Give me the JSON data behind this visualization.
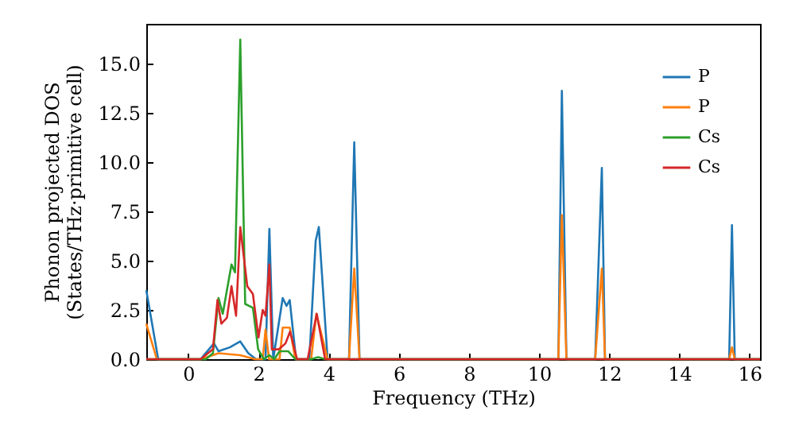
{
  "chart_data": {
    "type": "line",
    "xlabel": "Frequency (THz)",
    "ylabel": "Phonon projected DOS\n(States/THz·primitive cell)",
    "xlim": [
      -1.2,
      16.3
    ],
    "ylim": [
      0,
      17
    ],
    "xticks": [
      0,
      2,
      4,
      6,
      8,
      10,
      12,
      14,
      16
    ],
    "yticks": [
      {
        "value": 0,
        "label": "0.0"
      },
      {
        "value": 2.5,
        "label": "2.5"
      },
      {
        "value": 5,
        "label": "5.0"
      },
      {
        "value": 7.5,
        "label": "7.5"
      },
      {
        "value": 10,
        "label": "10.0"
      },
      {
        "value": 12.5,
        "label": "12.5"
      },
      {
        "value": 15,
        "label": "15.0"
      }
    ],
    "legend": "top right",
    "line_style": "solid",
    "marker": "none",
    "series": [
      {
        "name": "P",
        "color": "#1f77b4",
        "x": [
          -1.2,
          -0.86,
          0.35,
          0.73,
          0.86,
          1.18,
          1.48,
          1.71,
          1.93,
          2.2,
          2.31,
          2.42,
          2.69,
          2.8,
          2.89,
          3.07,
          3.45,
          3.63,
          3.72,
          3.97,
          4.58,
          4.73,
          4.88,
          10.55,
          10.65,
          10.78,
          11.6,
          11.79,
          11.88,
          15.42,
          15.5,
          15.58,
          16.3
        ],
        "values": [
          3.5,
          0,
          0,
          0.8,
          0.4,
          0.6,
          0.9,
          0.3,
          0,
          0,
          6.6,
          0,
          3.1,
          2.7,
          3.0,
          0,
          0,
          6.0,
          6.7,
          0,
          0,
          11.0,
          0,
          0,
          13.6,
          0,
          0,
          9.7,
          0,
          0,
          6.8,
          0,
          0
        ]
      },
      {
        "name": "P",
        "color": "#ff7f0e",
        "x": [
          -1.2,
          -0.9,
          0.35,
          0.7,
          0.86,
          1.48,
          1.9,
          2.12,
          2.2,
          2.3,
          2.6,
          2.69,
          2.89,
          3.05,
          3.5,
          3.65,
          3.97,
          4.58,
          4.73,
          4.88,
          10.55,
          10.65,
          10.78,
          11.6,
          11.79,
          11.88,
          15.42,
          15.5,
          15.58,
          16.3
        ],
        "values": [
          1.8,
          0,
          0,
          0.2,
          0.3,
          0.2,
          0,
          0,
          1.5,
          0,
          0,
          1.6,
          1.6,
          0,
          0,
          2.3,
          0,
          0,
          4.6,
          0,
          0,
          7.3,
          0,
          0,
          4.6,
          0,
          0,
          0.6,
          0,
          0
        ]
      },
      {
        "name": "Cs",
        "color": "#2ca02c",
        "x": [
          -1.2,
          0.5,
          0.7,
          0.86,
          0.98,
          1.23,
          1.33,
          1.48,
          1.62,
          1.84,
          1.99,
          2.15,
          2.31,
          2.45,
          2.6,
          2.85,
          3.05,
          3.5,
          3.7,
          3.9,
          16.3
        ],
        "values": [
          0,
          0,
          0.3,
          3.1,
          2.3,
          4.8,
          4.4,
          16.2,
          2.8,
          2.6,
          0.5,
          0,
          0.2,
          0,
          0.4,
          0.4,
          0,
          0,
          0.1,
          0,
          0
        ]
      },
      {
        "name": "Cs",
        "color": "#d62728",
        "x": [
          -1.2,
          0.35,
          0.7,
          0.83,
          0.94,
          1.1,
          1.23,
          1.36,
          1.48,
          1.68,
          1.84,
          2.0,
          2.12,
          2.2,
          2.31,
          2.38,
          2.58,
          2.77,
          2.9,
          3.1,
          3.4,
          3.66,
          3.9,
          16.3
        ],
        "values": [
          0,
          0,
          0.5,
          3.0,
          1.8,
          2.1,
          3.7,
          2.2,
          6.7,
          3.7,
          3.3,
          1.1,
          2.5,
          2.2,
          4.8,
          0.5,
          0.5,
          0.8,
          1.4,
          0,
          0,
          2.3,
          0,
          0
        ]
      }
    ]
  }
}
